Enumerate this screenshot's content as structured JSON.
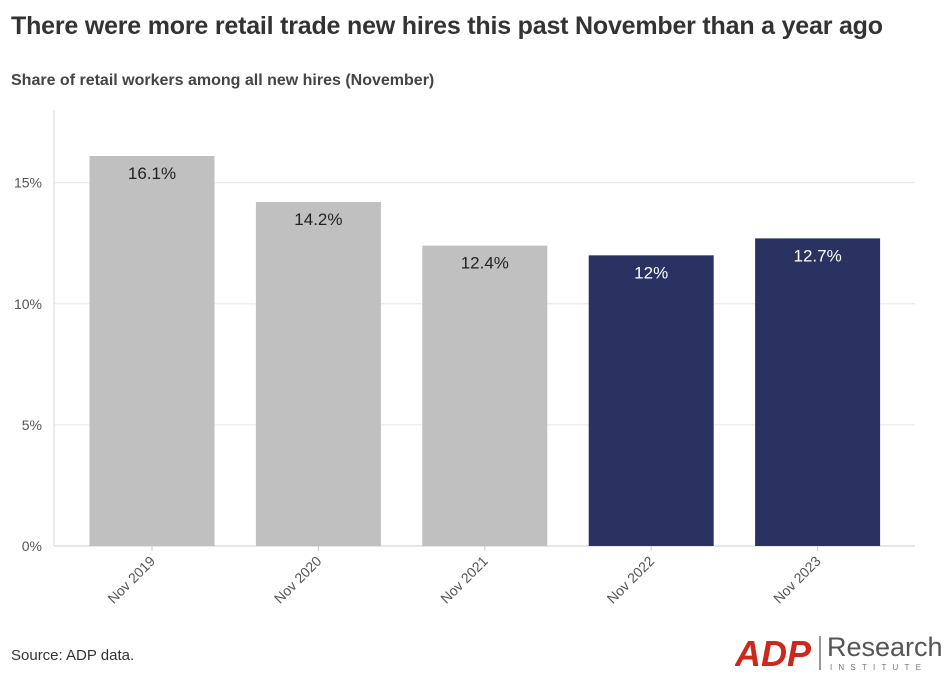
{
  "title": "There were more retail trade new hires this past November than a year ago",
  "subtitle": "Share of retail workers among all new hires (November)",
  "source": "Source: ADP data.",
  "logo": {
    "brand": "ADP",
    "name": "Research",
    "tagline": "INSTITUTE"
  },
  "chart_data": {
    "type": "bar",
    "categories": [
      "Nov 2019",
      "Nov 2020",
      "Nov 2021",
      "Nov 2022",
      "Nov 2023"
    ],
    "values": [
      16.1,
      14.2,
      12.4,
      12,
      12.7
    ],
    "data_labels": [
      "16.1%",
      "14.2%",
      "12.4%",
      "12%",
      "12.7%"
    ],
    "bar_colors": [
      "#c0c0c0",
      "#c0c0c0",
      "#c0c0c0",
      "#293260",
      "#293260"
    ],
    "label_colors": [
      "#222222",
      "#222222",
      "#222222",
      "#ffffff",
      "#ffffff"
    ],
    "ylim": [
      0,
      18
    ],
    "yticks": [
      0,
      5,
      10,
      15
    ],
    "ytick_labels": [
      "0%",
      "5%",
      "10%",
      "15%"
    ],
    "grid": true,
    "xlabel": "",
    "ylabel": ""
  }
}
